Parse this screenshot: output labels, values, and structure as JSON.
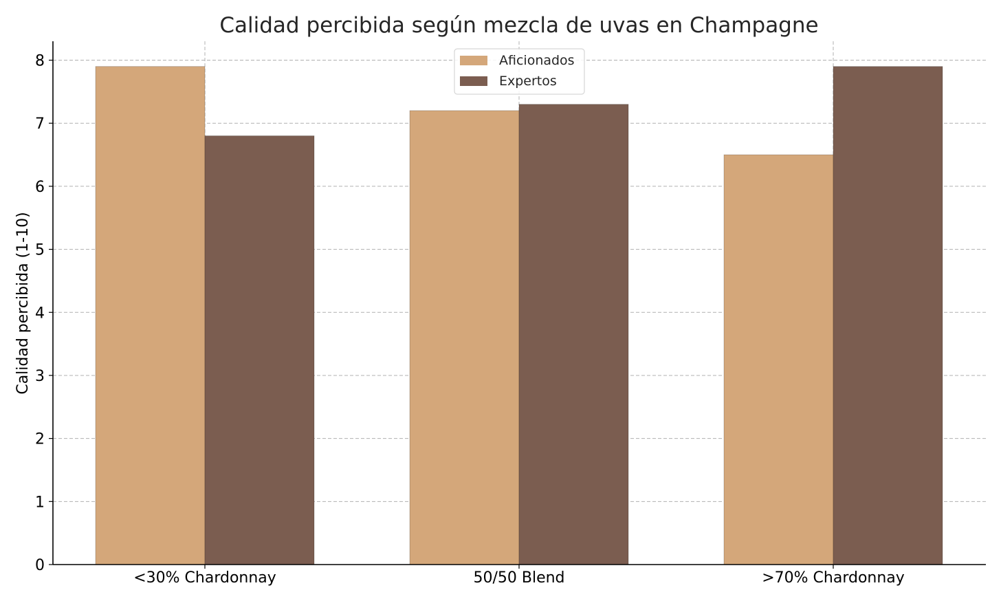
{
  "chart_data": {
    "type": "bar",
    "title": "Calidad percibida según mezcla de uvas en Champagne",
    "xlabel": "",
    "ylabel": "Calidad percibida (1-10)",
    "categories": [
      "<30% Chardonnay",
      "50/50 Blend",
      ">70% Chardonnay"
    ],
    "series": [
      {
        "name": "Aficionados",
        "values": [
          7.9,
          7.2,
          6.5
        ],
        "color": "#d4a77a"
      },
      {
        "name": "Expertos",
        "values": [
          6.8,
          7.3,
          7.9
        ],
        "color": "#7b5d50"
      }
    ],
    "ylim": [
      0,
      8.3
    ],
    "yticks": [
      0,
      1,
      2,
      3,
      4,
      5,
      6,
      7,
      8
    ],
    "grid": true,
    "legend_position": "top-center"
  }
}
